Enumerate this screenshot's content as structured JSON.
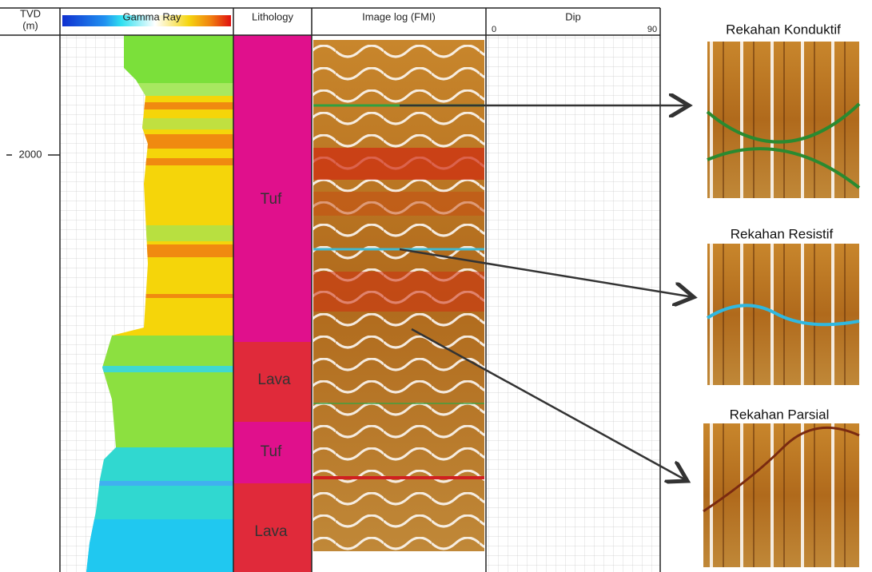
{
  "header": {
    "depth_title": "TVD",
    "depth_unit": "(m)",
    "columns": [
      "Gamma Ray",
      "Lithology",
      "Image log (FMI)",
      "Dip"
    ]
  },
  "depth_tick": 2000,
  "dip_scale": [
    0,
    90
  ],
  "lithology": [
    {
      "label": "Tuf"
    },
    {
      "label": "Lava"
    },
    {
      "label": "Tuf"
    },
    {
      "label": "Lava"
    }
  ],
  "fractures": [
    {
      "title": "Rekahan Konduktif"
    },
    {
      "title": "Rekahan Resistif"
    },
    {
      "title": "Rekahan Parsial"
    }
  ]
}
